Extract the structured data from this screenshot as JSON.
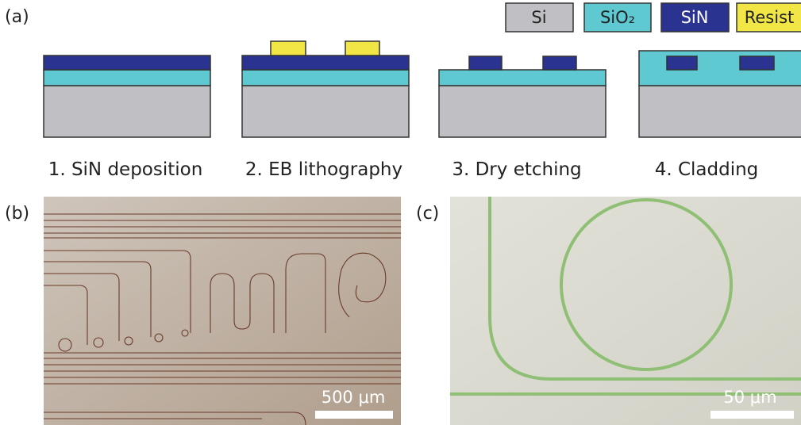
{
  "panels": [
    {
      "label": "(a)",
      "legend": [
        "Si",
        "SiO₂",
        "SiN",
        "Resist"
      ],
      "steps": [
        "1. SiN deposition",
        "2. EB lithography",
        "3. Dry etching",
        "4. Cladding"
      ]
    },
    {
      "label": "(b)",
      "scale_bar": "500 μm"
    },
    {
      "label": "(c)",
      "scale_bar": "50 μm"
    }
  ]
}
